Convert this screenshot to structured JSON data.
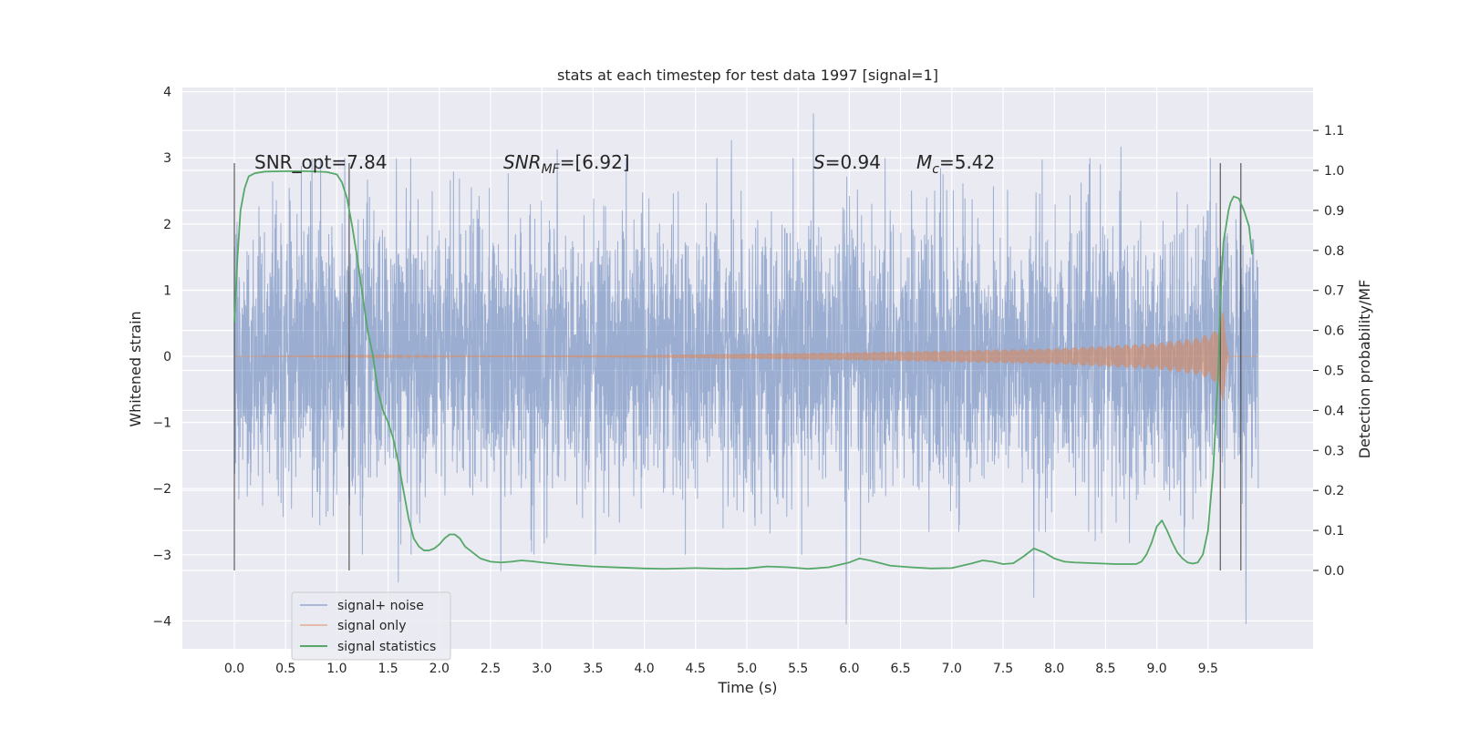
{
  "chart_data": {
    "type": "line",
    "title": "stats at each timestep for test data 1997 [signal=1]",
    "xlabel": "Time (s)",
    "ylabel_left": "Whitened strain",
    "ylabel_right": "Detection probability/MF",
    "xlim": [
      -0.5,
      10.5
    ],
    "ylim_left": [
      -4.4,
      4.1
    ],
    "ylim_right": [
      -0.2,
      1.2
    ],
    "x_ticks": [
      "0.0",
      "0.5",
      "1.0",
      "1.5",
      "2.0",
      "2.5",
      "3.0",
      "3.5",
      "4.0",
      "4.5",
      "5.0",
      "5.5",
      "6.0",
      "6.5",
      "7.0",
      "7.5",
      "8.0",
      "8.5",
      "9.0",
      "9.5"
    ],
    "y_ticks_left": [
      "4",
      "3",
      "2",
      "1",
      "0",
      "−1",
      "−2",
      "−3",
      "−4"
    ],
    "y_ticks_right": [
      "1.1",
      "1.0",
      "0.9",
      "0.8",
      "0.7",
      "0.6",
      "0.5",
      "0.4",
      "0.3",
      "0.2",
      "0.1",
      "0.0"
    ],
    "grid": true,
    "legend_position": "lower-left",
    "background": "#eaeaf2",
    "annotations": {
      "snr_opt": "SNR_opt=7.84",
      "snr_mf_main": "SNR",
      "snr_mf_sub": "MF",
      "snr_mf_value": "=[6.92]",
      "s_symbol": "S",
      "s_value": "=0.94",
      "mc_main": "M",
      "mc_sub": "c",
      "mc_value": "=5.42"
    },
    "vertical_markers_s": [
      0.0,
      1.12,
      9.62,
      9.82
    ],
    "series": [
      {
        "name": "signal+ noise",
        "color": "#4c72b0",
        "axis": "left",
        "x_range": [
          0.0,
          9.99
        ],
        "std": 1.0,
        "extremes": [
          [
            5.65,
            3.67
          ],
          [
            5.97,
            -4.05
          ],
          [
            9.87,
            -4.05
          ],
          [
            7.8,
            -3.65
          ],
          [
            1.6,
            -3.42
          ],
          [
            4.85,
            3.27
          ],
          [
            8.65,
            3.17
          ],
          [
            3.15,
            3.13
          ],
          [
            2.6,
            -3.25
          ]
        ]
      },
      {
        "name": "signal only",
        "color": "#dd8452",
        "axis": "left",
        "x_range": [
          0.0,
          9.99
        ],
        "envelope_t": [
          0.0,
          4.0,
          6.0,
          8.0,
          9.0,
          9.4,
          9.55,
          9.62,
          9.65,
          9.7
        ],
        "envelope_a": [
          0.0,
          0.02,
          0.06,
          0.12,
          0.2,
          0.28,
          0.36,
          0.55,
          0.7,
          0.0
        ]
      },
      {
        "name": "signal statistics",
        "color": "#55a868",
        "axis": "right",
        "x": [
          0.0,
          0.03,
          0.06,
          0.1,
          0.14,
          0.2,
          0.3,
          0.5,
          0.7,
          0.9,
          1.0,
          1.05,
          1.1,
          1.15,
          1.2,
          1.25,
          1.3,
          1.35,
          1.4,
          1.45,
          1.5,
          1.55,
          1.6,
          1.65,
          1.7,
          1.75,
          1.8,
          1.85,
          1.9,
          1.95,
          2.0,
          2.05,
          2.1,
          2.15,
          2.2,
          2.25,
          2.3,
          2.4,
          2.5,
          2.6,
          2.7,
          2.8,
          2.9,
          3.0,
          3.2,
          3.5,
          3.8,
          4.0,
          4.2,
          4.5,
          4.8,
          5.0,
          5.2,
          5.4,
          5.6,
          5.8,
          6.0,
          6.1,
          6.2,
          6.4,
          6.6,
          6.8,
          7.0,
          7.1,
          7.2,
          7.3,
          7.4,
          7.5,
          7.6,
          7.7,
          7.8,
          7.9,
          8.0,
          8.1,
          8.2,
          8.4,
          8.6,
          8.8,
          8.85,
          8.9,
          8.95,
          9.0,
          9.05,
          9.1,
          9.15,
          9.2,
          9.25,
          9.3,
          9.35,
          9.4,
          9.45,
          9.5,
          9.55,
          9.6,
          9.62,
          9.65,
          9.7,
          9.72,
          9.75,
          9.8,
          9.85,
          9.9,
          9.93
        ],
        "y": [
          0.62,
          0.78,
          0.9,
          0.955,
          0.985,
          0.993,
          0.997,
          0.998,
          0.998,
          0.996,
          0.99,
          0.97,
          0.93,
          0.86,
          0.78,
          0.69,
          0.6,
          0.54,
          0.45,
          0.4,
          0.37,
          0.33,
          0.27,
          0.2,
          0.13,
          0.08,
          0.06,
          0.05,
          0.05,
          0.055,
          0.065,
          0.08,
          0.09,
          0.09,
          0.08,
          0.06,
          0.05,
          0.03,
          0.022,
          0.02,
          0.022,
          0.025,
          0.023,
          0.02,
          0.015,
          0.01,
          0.007,
          0.005,
          0.004,
          0.006,
          0.004,
          0.005,
          0.01,
          0.008,
          0.004,
          0.008,
          0.02,
          0.03,
          0.025,
          0.012,
          0.008,
          0.005,
          0.006,
          0.012,
          0.018,
          0.025,
          0.022,
          0.016,
          0.018,
          0.035,
          0.055,
          0.045,
          0.03,
          0.022,
          0.02,
          0.018,
          0.016,
          0.016,
          0.022,
          0.04,
          0.07,
          0.11,
          0.125,
          0.1,
          0.07,
          0.045,
          0.03,
          0.02,
          0.017,
          0.02,
          0.04,
          0.1,
          0.25,
          0.5,
          0.68,
          0.82,
          0.9,
          0.92,
          0.935,
          0.93,
          0.9,
          0.86,
          0.79
        ]
      }
    ]
  }
}
